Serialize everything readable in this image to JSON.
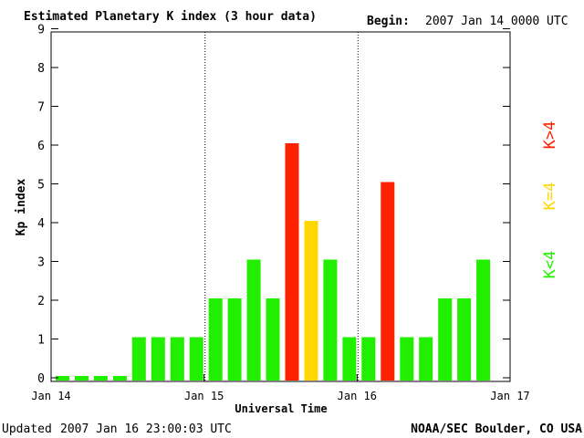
{
  "header": {
    "title": "Estimated Planetary K index (3 hour data)",
    "begin_label": "Begin:",
    "begin_value": "2007 Jan 14 0000 UTC"
  },
  "footer": {
    "updated_label": "Updated",
    "updated_value": "2007 Jan 16 23:00:03 UTC",
    "source": "NOAA/SEC Boulder, CO USA"
  },
  "legend": {
    "items": [
      {
        "label": "K<4",
        "color": "#22ee00"
      },
      {
        "label": "K=4",
        "color": "#ffd700"
      },
      {
        "label": "K>4",
        "color": "#ff2200"
      }
    ]
  },
  "chart_data": {
    "type": "bar",
    "title": "Estimated Planetary K index (3 hour data)",
    "xlabel": "Universal Time",
    "ylabel": "Kp index",
    "ylim": [
      0,
      9
    ],
    "yticks": [
      0,
      1,
      2,
      3,
      4,
      5,
      6,
      7,
      8,
      9
    ],
    "xticks": [
      "Jan 14",
      "Jan 15",
      "Jan 16",
      "Jan 17"
    ],
    "bars_per_day": 8,
    "day_separators": [
      8,
      16
    ],
    "thresholds": {
      "low": 4
    },
    "colors": {
      "low": "#22ee00",
      "equal": "#ffd700",
      "high": "#ff2200"
    },
    "values": [
      0,
      0,
      0,
      0,
      1,
      1,
      1,
      1,
      2,
      2,
      3,
      2,
      6,
      4,
      3,
      1,
      1,
      5,
      1,
      1,
      2,
      2,
      3
    ]
  }
}
